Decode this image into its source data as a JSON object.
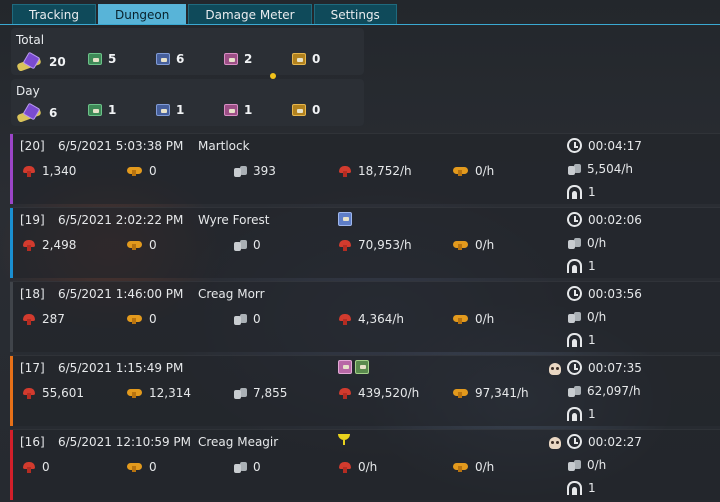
{
  "tabs": [
    {
      "label": "Tracking",
      "active": false
    },
    {
      "label": "Dungeon",
      "active": true
    },
    {
      "label": "Damage Meter",
      "active": false
    },
    {
      "label": "Settings",
      "active": false
    }
  ],
  "summary": {
    "total": {
      "title": "Total",
      "keys": "20",
      "green": "5",
      "blue": "6",
      "pink": "2",
      "gold": "0"
    },
    "day": {
      "title": "Day",
      "keys": "6",
      "green": "1",
      "blue": "1",
      "pink": "1",
      "gold": "0"
    }
  },
  "colors": {
    "purple": "#9b45c7",
    "blue": "#1a8fd1",
    "gray": "#40444a",
    "orange": "#e67018",
    "red": "#d11f2a"
  },
  "rows": [
    {
      "id": "[20]",
      "date": "6/5/2021 5:03:38 PM",
      "map": "Martlock",
      "fame": "1,340",
      "re": "0",
      "silver": "393",
      "fame_h": "18,752/h",
      "re_h": "0/h",
      "time": "00:04:17",
      "silver_h": "5,504/h",
      "count": "1",
      "bar": "purple",
      "loot": [],
      "skull": false
    },
    {
      "id": "[19]",
      "date": "6/5/2021 2:02:22 PM",
      "map": "Wyre Forest",
      "fame": "2,498",
      "re": "0",
      "silver": "0",
      "fame_h": "70,953/h",
      "re_h": "0/h",
      "time": "00:02:06",
      "silver_h": "0/h",
      "count": "1",
      "bar": "blue",
      "loot": [
        "blue"
      ],
      "skull": false
    },
    {
      "id": "[18]",
      "date": "6/5/2021 1:46:00 PM",
      "map": "Creag Morr",
      "fame": "287",
      "re": "0",
      "silver": "0",
      "fame_h": "4,364/h",
      "re_h": "0/h",
      "time": "00:03:56",
      "silver_h": "0/h",
      "count": "1",
      "bar": "gray",
      "loot": [],
      "skull": false
    },
    {
      "id": "[17]",
      "date": "6/5/2021 1:15:49 PM",
      "map": "",
      "fame": "55,601",
      "re": "12,314",
      "silver": "7,855",
      "fame_h": "439,520/h",
      "re_h": "97,341/h",
      "time": "00:07:35",
      "silver_h": "62,097/h",
      "count": "1",
      "bar": "orange",
      "loot": [
        "pink",
        "green"
      ],
      "skull": true
    },
    {
      "id": "[16]",
      "date": "6/5/2021 12:10:59 PM",
      "map": "Creag Meagir",
      "fame": "0",
      "re": "0",
      "silver": "0",
      "fame_h": "0/h",
      "re_h": "0/h",
      "time": "00:02:27",
      "silver_h": "0/h",
      "count": "1",
      "bar": "red",
      "loot": [
        "cup"
      ],
      "skull": true
    }
  ]
}
